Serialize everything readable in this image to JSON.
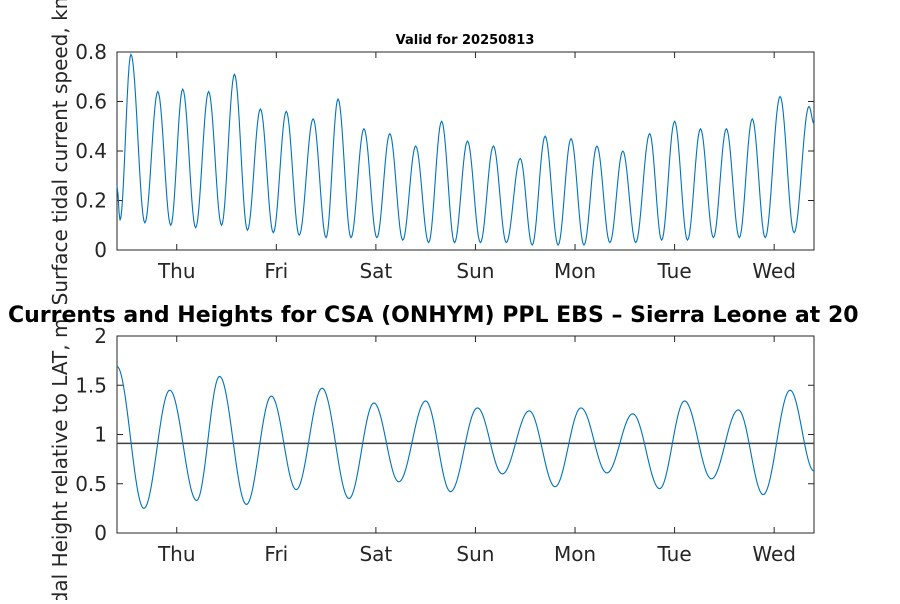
{
  "chart_data": [
    {
      "type": "line",
      "title": "Valid for 20250813",
      "ylabel": "Surface tidal current speed, kn",
      "ylim": [
        0,
        0.8
      ],
      "yticks": [
        "0",
        "0.2",
        "0.4",
        "0.6",
        "0.8"
      ],
      "xrange_days": [
        0,
        7
      ],
      "xtick_labels": [
        "Thu",
        "Fri",
        "Sat",
        "Sun",
        "Mon",
        "Tue",
        "Wed"
      ],
      "line_color": "#0072bd",
      "series": [
        {
          "peaks_t": [
            0.14,
            0.41,
            0.66,
            0.92,
            1.18,
            1.44,
            1.7,
            1.97,
            2.22,
            2.48,
            2.74,
            3.0,
            3.26,
            3.52,
            3.78,
            4.05,
            4.3,
            4.56,
            4.82,
            5.08,
            5.35,
            5.6,
            5.86,
            6.12,
            6.38,
            6.66,
            6.95
          ],
          "peaks_v": [
            0.79,
            0.64,
            0.65,
            0.64,
            0.71,
            0.57,
            0.56,
            0.53,
            0.61,
            0.49,
            0.47,
            0.42,
            0.52,
            0.44,
            0.42,
            0.37,
            0.46,
            0.45,
            0.42,
            0.4,
            0.47,
            0.52,
            0.49,
            0.49,
            0.53,
            0.62,
            0.58
          ],
          "troughs_t": [
            0.03,
            0.28,
            0.54,
            0.79,
            1.05,
            1.31,
            1.57,
            1.83,
            2.1,
            2.35,
            2.61,
            2.87,
            3.13,
            3.39,
            3.65,
            3.91,
            4.17,
            4.43,
            4.69,
            4.95,
            5.21,
            5.47,
            5.73,
            5.99,
            6.25,
            6.51,
            6.8
          ],
          "troughs_v": [
            0.12,
            0.11,
            0.1,
            0.09,
            0.1,
            0.08,
            0.07,
            0.06,
            0.05,
            0.05,
            0.05,
            0.04,
            0.03,
            0.03,
            0.03,
            0.03,
            0.02,
            0.02,
            0.02,
            0.03,
            0.03,
            0.04,
            0.04,
            0.05,
            0.05,
            0.05,
            0.07
          ]
        }
      ]
    },
    {
      "type": "line",
      "title": "Currents and Heights for CSA (ONHYM) PPL EBS  – Sierra Leone at 20",
      "ylabel": "Tidal Height relative to LAT, m",
      "ylim": [
        0,
        2
      ],
      "yticks": [
        "0",
        "0.5",
        "1",
        "1.5",
        "2"
      ],
      "xrange_days": [
        0,
        7
      ],
      "xtick_labels": [
        "Thu",
        "Fri",
        "Sat",
        "Sun",
        "Mon",
        "Tue",
        "Wed"
      ],
      "reference_line": 0.91,
      "reference_line_color": "#404040",
      "line_color": "#0072bd",
      "series": [
        {
          "highs_t": [
            0.53,
            1.03,
            1.55,
            2.06,
            2.58,
            3.1,
            3.62,
            4.14,
            4.66,
            5.18,
            5.7,
            6.24,
            6.76
          ],
          "highs_v": [
            1.45,
            1.59,
            1.39,
            1.47,
            1.32,
            1.34,
            1.27,
            1.24,
            1.27,
            1.21,
            1.34,
            1.25,
            1.45
          ],
          "lows_t": [
            0.27,
            0.8,
            1.3,
            1.8,
            2.33,
            2.83,
            3.35,
            3.87,
            4.4,
            4.92,
            5.45,
            5.97,
            6.49
          ],
          "lows_v": [
            0.25,
            0.33,
            0.29,
            0.44,
            0.35,
            0.52,
            0.42,
            0.6,
            0.47,
            0.61,
            0.45,
            0.55,
            0.39
          ],
          "start_v": 1.69,
          "end_v": 0.63
        }
      ]
    }
  ]
}
